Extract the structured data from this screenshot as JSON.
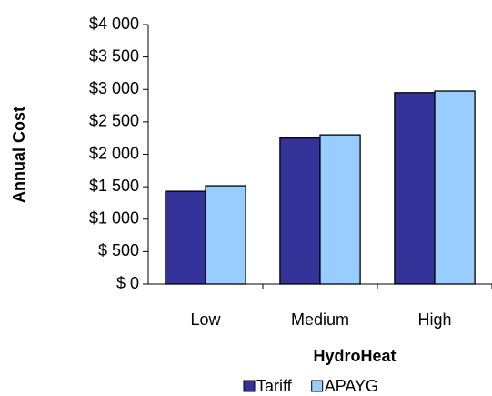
{
  "chart_data": {
    "type": "bar",
    "xlabel": "HydroHeat",
    "ylabel": "Annual Cost",
    "categories": [
      "Low",
      "Medium",
      "High"
    ],
    "series": [
      {
        "name": "Tariff",
        "color": "#333399",
        "values": [
          1430,
          2250,
          2950
        ]
      },
      {
        "name": "APAYG",
        "color": "#99ccff",
        "values": [
          1515,
          2300,
          2975
        ]
      }
    ],
    "ylim": [
      0,
      4000
    ],
    "yticks": [
      {
        "value": 0,
        "label": "$ 0"
      },
      {
        "value": 500,
        "label": "$ 500"
      },
      {
        "value": 1000,
        "label": "$1 000"
      },
      {
        "value": 1500,
        "label": "$1 500"
      },
      {
        "value": 2000,
        "label": "$2 000"
      },
      {
        "value": 2500,
        "label": "$2 500"
      },
      {
        "value": 3000,
        "label": "$3 000"
      },
      {
        "value": 3500,
        "label": "$3 500"
      },
      {
        "value": 4000,
        "label": "$4 000"
      }
    ],
    "legend": "bottom",
    "grid": false
  }
}
